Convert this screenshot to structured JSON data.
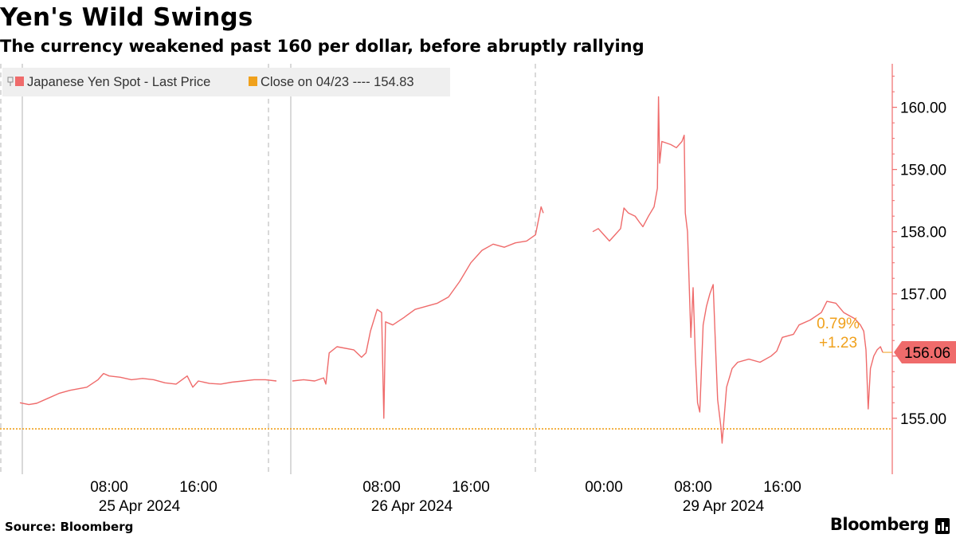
{
  "header": {
    "title": "Yen's Wild Swings",
    "subtitle": "The currency weakened past 160 per dollar, before abruptly rallying"
  },
  "footer": {
    "source": "Source: Bloomberg",
    "brand": "Bloomberg"
  },
  "colors": {
    "series": "#ef6b6b",
    "reference": "#f0a11c",
    "text": "#000000",
    "grid": "#b3b3b3",
    "legend_bg": "#efefef",
    "axis": "#ef6b6b"
  },
  "chart_data": {
    "type": "line",
    "legend": {
      "placement": "top-left",
      "entries": [
        "Japanese Yen Spot - Last Price",
        "Close on 04/23 ---- 154.83"
      ]
    },
    "ylim": [
      154.1,
      160.7
    ],
    "y_ticks": [
      155,
      156,
      157,
      158,
      159,
      160
    ],
    "y_tick_labels": [
      "155.00",
      "156.00",
      "157.00",
      "158.00",
      "159.00",
      "160.00"
    ],
    "x_ticks": [
      {
        "label": "08:00",
        "date": "25 Apr 2024",
        "day_index": 0,
        "hour": 8
      },
      {
        "label": "16:00",
        "date": "",
        "day_index": 0,
        "hour": 16
      },
      {
        "label": "08:00",
        "date": "26 Apr 2024",
        "day_index": 1,
        "hour": 8
      },
      {
        "label": "16:00",
        "date": "",
        "day_index": 1,
        "hour": 16
      },
      {
        "label": "00:00",
        "date": "",
        "day_index": 2,
        "hour": 0
      },
      {
        "label": "08:00",
        "date": "29 Apr 2024",
        "day_index": 2,
        "hour": 8
      },
      {
        "label": "16:00",
        "date": "",
        "day_index": 2,
        "hour": 16
      }
    ],
    "reference_line": {
      "label": "Close on 04/23",
      "value": 154.83
    },
    "last_value": {
      "value": 156.06,
      "label": "156.06"
    },
    "change": {
      "percent": "0.79%",
      "absolute": "+1.23"
    },
    "series": [
      {
        "name": "Japanese Yen Spot - Last Price",
        "segments": [
          [
            [
              0,
              0.0,
              155.25
            ],
            [
              0,
              0.8,
              155.22
            ],
            [
              0,
              1.5,
              155.24
            ],
            [
              0,
              2.5,
              155.32
            ],
            [
              0,
              3.5,
              155.4
            ],
            [
              0,
              4.5,
              155.45
            ],
            [
              0,
              6.0,
              155.5
            ],
            [
              0,
              7.0,
              155.62
            ],
            [
              0,
              7.5,
              155.72
            ],
            [
              0,
              8.0,
              155.68
            ],
            [
              0,
              9.0,
              155.66
            ],
            [
              0,
              10.0,
              155.62
            ],
            [
              0,
              11.0,
              155.64
            ],
            [
              0,
              12.0,
              155.62
            ],
            [
              0,
              13.0,
              155.57
            ],
            [
              0,
              14.0,
              155.55
            ],
            [
              0,
              15.0,
              155.68
            ],
            [
              0,
              15.5,
              155.5
            ],
            [
              0,
              16.0,
              155.6
            ],
            [
              0,
              17.0,
              155.56
            ],
            [
              0,
              18.0,
              155.55
            ],
            [
              0,
              19.0,
              155.58
            ],
            [
              0,
              20.0,
              155.6
            ],
            [
              0,
              21.0,
              155.62
            ],
            [
              0,
              22.0,
              155.62
            ],
            [
              0,
              23.0,
              155.6
            ]
          ],
          [
            [
              1,
              0.0,
              155.6
            ],
            [
              1,
              1.0,
              155.62
            ],
            [
              1,
              2.0,
              155.6
            ],
            [
              1,
              2.8,
              155.65
            ],
            [
              1,
              3.0,
              155.55
            ],
            [
              1,
              3.3,
              156.05
            ],
            [
              1,
              4.0,
              156.15
            ],
            [
              1,
              5.5,
              156.1
            ],
            [
              1,
              6.2,
              155.98
            ],
            [
              1,
              6.6,
              156.05
            ],
            [
              1,
              7.0,
              156.4
            ],
            [
              1,
              7.6,
              156.75
            ],
            [
              1,
              8.0,
              156.7
            ],
            [
              1,
              8.2,
              155.0
            ],
            [
              1,
              8.35,
              156.55
            ],
            [
              1,
              9.0,
              156.5
            ],
            [
              1,
              10.0,
              156.62
            ],
            [
              1,
              11.0,
              156.75
            ],
            [
              1,
              12.0,
              156.8
            ],
            [
              1,
              13.0,
              156.85
            ],
            [
              1,
              14.0,
              156.95
            ],
            [
              1,
              15.0,
              157.2
            ],
            [
              1,
              16.0,
              157.5
            ],
            [
              1,
              17.0,
              157.7
            ],
            [
              1,
              18.0,
              157.8
            ],
            [
              1,
              19.0,
              157.75
            ],
            [
              1,
              20.0,
              157.82
            ],
            [
              1,
              21.0,
              157.85
            ],
            [
              1,
              21.8,
              157.95
            ],
            [
              1,
              22.3,
              158.4
            ],
            [
              1,
              22.5,
              158.3
            ]
          ],
          [
            [
              2,
              -1.0,
              158.0
            ],
            [
              2,
              -0.5,
              158.05
            ],
            [
              2,
              0.0,
              157.95
            ],
            [
              2,
              0.5,
              157.85
            ],
            [
              2,
              1.0,
              157.95
            ],
            [
              2,
              1.5,
              158.05
            ],
            [
              2,
              1.8,
              158.38
            ],
            [
              2,
              2.2,
              158.3
            ],
            [
              2,
              2.8,
              158.25
            ],
            [
              2,
              3.2,
              158.15
            ],
            [
              2,
              3.5,
              158.08
            ],
            [
              2,
              4.0,
              158.25
            ],
            [
              2,
              4.5,
              158.4
            ],
            [
              2,
              4.8,
              158.7
            ],
            [
              2,
              4.9,
              160.17
            ],
            [
              2,
              5.0,
              159.1
            ],
            [
              2,
              5.2,
              159.45
            ],
            [
              2,
              6.0,
              159.4
            ],
            [
              2,
              6.5,
              159.35
            ],
            [
              2,
              7.0,
              159.45
            ],
            [
              2,
              7.2,
              159.55
            ],
            [
              2,
              7.3,
              158.3
            ],
            [
              2,
              7.5,
              158.0
            ],
            [
              2,
              7.8,
              156.3
            ],
            [
              2,
              8.0,
              157.1
            ],
            [
              2,
              8.2,
              156.0
            ],
            [
              2,
              8.4,
              155.25
            ],
            [
              2,
              8.6,
              155.1
            ],
            [
              2,
              8.9,
              156.5
            ],
            [
              2,
              9.2,
              156.8
            ],
            [
              2,
              9.5,
              157.0
            ],
            [
              2,
              9.8,
              157.15
            ],
            [
              2,
              10.0,
              156.2
            ],
            [
              2,
              10.2,
              155.3
            ],
            [
              2,
              10.5,
              154.85
            ],
            [
              2,
              10.6,
              154.6
            ],
            [
              2,
              11.0,
              155.5
            ],
            [
              2,
              11.5,
              155.8
            ],
            [
              2,
              12.0,
              155.9
            ],
            [
              2,
              13.0,
              155.95
            ],
            [
              2,
              14.0,
              155.9
            ],
            [
              2,
              15.0,
              156.0
            ],
            [
              2,
              15.5,
              156.08
            ],
            [
              2,
              16.0,
              156.3
            ],
            [
              2,
              17.0,
              156.35
            ],
            [
              2,
              17.5,
              156.5
            ],
            [
              2,
              18.5,
              156.58
            ],
            [
              2,
              19.5,
              156.7
            ],
            [
              2,
              20.0,
              156.88
            ],
            [
              2,
              20.8,
              156.85
            ],
            [
              2,
              21.5,
              156.7
            ],
            [
              2,
              22.5,
              156.6
            ],
            [
              2,
              23.0,
              156.5
            ],
            [
              2,
              23.3,
              156.4
            ],
            [
              2,
              23.5,
              156.1
            ],
            [
              2,
              23.7,
              155.15
            ],
            [
              2,
              23.9,
              155.8
            ],
            [
              2,
              24.2,
              156.0
            ],
            [
              2,
              24.5,
              156.1
            ],
            [
              2,
              24.8,
              156.15
            ],
            [
              2,
              25.0,
              156.06
            ]
          ]
        ]
      }
    ]
  }
}
